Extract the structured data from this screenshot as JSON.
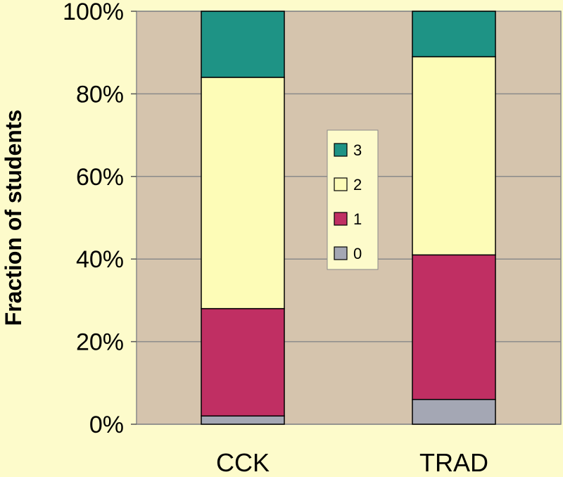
{
  "chart_data": {
    "type": "bar",
    "stacked": true,
    "categories": [
      "CCK",
      "TRAD"
    ],
    "series": [
      {
        "name": "0",
        "values": [
          2,
          6
        ],
        "color": "#a4a7b4"
      },
      {
        "name": "1",
        "values": [
          26,
          35
        ],
        "color": "#c02f63"
      },
      {
        "name": "2",
        "values": [
          56,
          48
        ],
        "color": "#fdfcb7"
      },
      {
        "name": "3",
        "values": [
          16,
          11
        ],
        "color": "#1e9385"
      }
    ],
    "ylabel": "Fraction of students",
    "ylim": [
      0,
      100
    ],
    "yticks": [
      "0%",
      "20%",
      "40%",
      "60%",
      "80%",
      "100%"
    ],
    "grid": true,
    "legend_position": "center",
    "legend_order": [
      "3",
      "2",
      "1",
      "0"
    ],
    "plot_background": "#d5c4ad",
    "page_background": "#fdfbcb"
  }
}
